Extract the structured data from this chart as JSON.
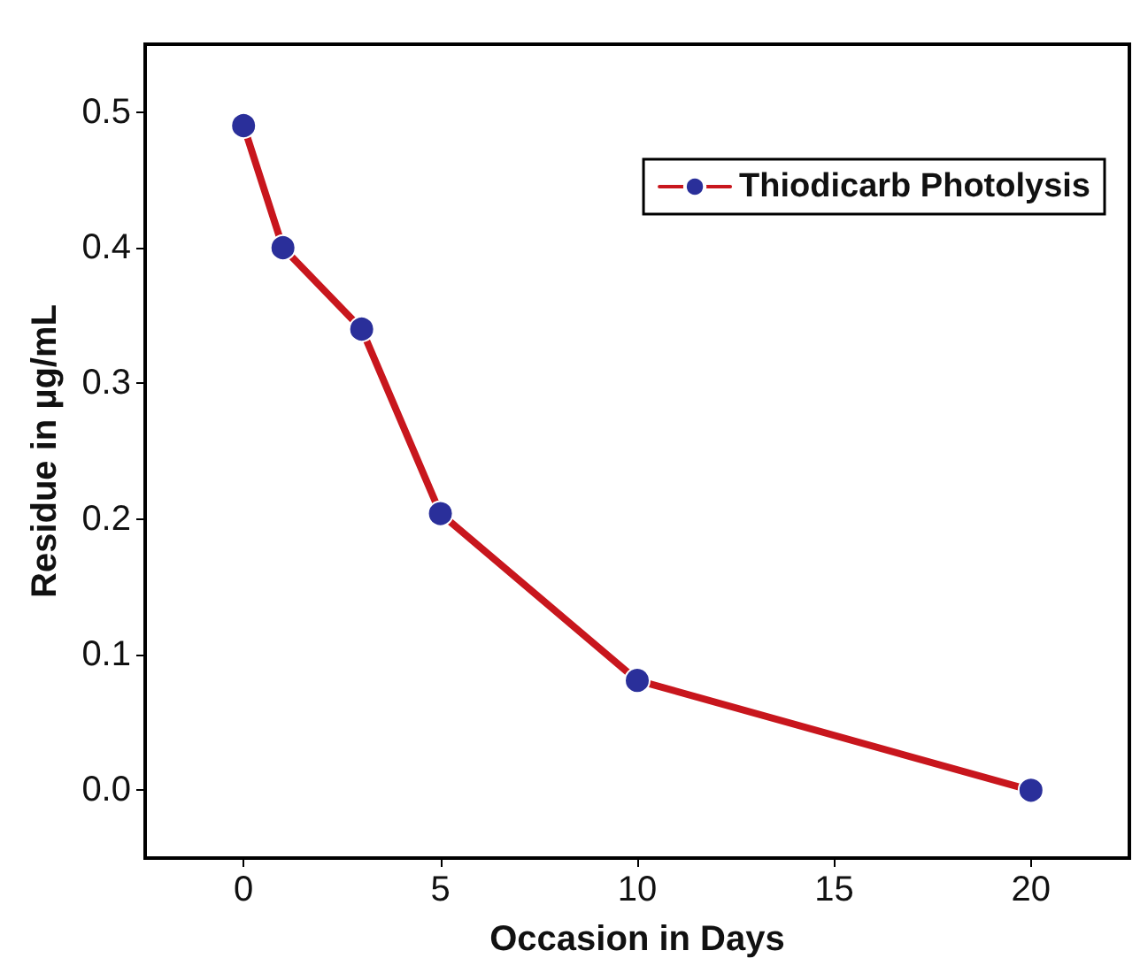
{
  "chart_data": {
    "type": "line",
    "xlabel": "Occasion in Days",
    "ylabel": "Residue in µg/mL",
    "x": [
      0,
      1,
      3,
      5,
      10,
      20
    ],
    "series": [
      {
        "name": "Thiodicarb Photolysis",
        "color": "#c8161d",
        "colors": [
          "#2a2f9a",
          "#2a2f9a",
          "#2a2f9a",
          "#2a2f9a",
          "#2a2f9a",
          "#2a2f9a"
        ],
        "values": [
          0.49,
          0.4,
          0.34,
          0.204,
          0.081,
          0.0
        ]
      }
    ],
    "xlim": [
      -2.5,
      22.5
    ],
    "xticks": [
      0,
      5,
      10,
      15,
      20
    ],
    "ylim": [
      -0.05,
      0.55
    ],
    "yticks": [
      {
        "value": 0,
        "label": "0.0"
      },
      {
        "value": 0.1,
        "label": "0.1"
      },
      {
        "value": 0.2,
        "label": "0.2"
      },
      {
        "value": 0.3,
        "label": "0.3"
      },
      {
        "value": 0.4,
        "label": "0.4"
      },
      {
        "value": 0.5,
        "label": "0.5"
      }
    ],
    "grid": false,
    "legend": "top right",
    "marker": "circle",
    "line_style": "solid"
  }
}
